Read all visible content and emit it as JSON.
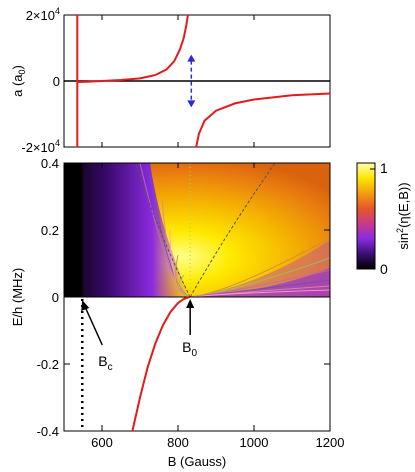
{
  "chart_data": [
    {
      "type": "line",
      "panel": "top",
      "ylabel_main": "a (a",
      "ylabel_sub": "0",
      "ylabel_close": ")",
      "yticks": [
        {
          "base": "2×10",
          "exp": "4",
          "value": 20000
        },
        {
          "base": "0",
          "exp": "",
          "value": 0
        },
        {
          "base": "-2×10",
          "exp": "4",
          "value": -20000
        }
      ],
      "ylim": [
        -20000,
        20000
      ],
      "xlim": [
        500,
        1200
      ],
      "series": [
        {
          "color": "#e41a1c",
          "values": [
            {
              "B": 535,
              "a": 20000
            },
            {
              "B": 535,
              "a": -20000
            }
          ]
        },
        {
          "color": "#e41a1c",
          "values": [
            {
              "B": 536,
              "a": -300
            },
            {
              "B": 560,
              "a": -200
            },
            {
              "B": 600,
              "a": 0
            },
            {
              "B": 650,
              "a": 300
            },
            {
              "B": 700,
              "a": 800
            },
            {
              "B": 740,
              "a": 1800
            },
            {
              "B": 770,
              "a": 3500
            },
            {
              "B": 790,
              "a": 6000
            },
            {
              "B": 805,
              "a": 9500
            },
            {
              "B": 815,
              "a": 13000
            },
            {
              "B": 822,
              "a": 17000
            },
            {
              "B": 826,
              "a": 20000
            }
          ]
        },
        {
          "color": "#e41a1c",
          "values": [
            {
              "B": 848,
              "a": -20000
            },
            {
              "B": 855,
              "a": -16000
            },
            {
              "B": 870,
              "a": -12000
            },
            {
              "B": 900,
              "a": -9000
            },
            {
              "B": 950,
              "a": -6800
            },
            {
              "B": 1000,
              "a": -5600
            },
            {
              "B": 1100,
              "a": -4300
            },
            {
              "B": 1200,
              "a": -3800
            }
          ]
        }
      ],
      "zero_line_color": "#000000",
      "arrow": {
        "B": 835,
        "from": 8000,
        "to": -8000,
        "color": "#2b2bd6"
      }
    },
    {
      "type": "heatmap",
      "panel": "bottom",
      "xlabel": "B (Gauss)",
      "ylabel": "E/h (MHz)",
      "xticks": [
        600,
        800,
        1000,
        1200
      ],
      "yticks": [
        0.4,
        0.2,
        0,
        -0.2,
        -0.4
      ],
      "ytick_labels": [
        "0.4",
        "0.2",
        "0",
        "-0.2",
        "-0.4"
      ],
      "xlim": [
        500,
        1200
      ],
      "ylim": [
        -0.4,
        0.4
      ],
      "colorbar": {
        "label": "sin",
        "label_exp": "2",
        "label_rest": "(η(E,B))",
        "tick_top": "1",
        "tick_bottom": "0",
        "colors": [
          "#000000",
          "#3b0f70",
          "#8a2be2",
          "#c73a8a",
          "#e8562a",
          "#f39c12",
          "#ffe600",
          "#ffffb0"
        ]
      },
      "threshold_curve": [
        {
          "B": 680,
          "E": -0.4
        },
        {
          "B": 700,
          "E": -0.3
        },
        {
          "B": 720,
          "E": -0.21
        },
        {
          "B": 740,
          "E": -0.14
        },
        {
          "B": 760,
          "E": -0.085
        },
        {
          "B": 780,
          "E": -0.045
        },
        {
          "B": 800,
          "E": -0.018
        },
        {
          "B": 815,
          "E": -0.006
        },
        {
          "B": 830,
          "E": 0
        }
      ],
      "dotted_line": {
        "B": 548,
        "from": -0.4,
        "to": 0
      },
      "annotations": [
        {
          "name": "Bc",
          "text": "B",
          "sub": "c",
          "B": 548
        },
        {
          "name": "B0",
          "text": "B",
          "sub": "0",
          "B": 832
        }
      ],
      "resonance_B": 832,
      "cutoff_B": 548
    }
  ]
}
